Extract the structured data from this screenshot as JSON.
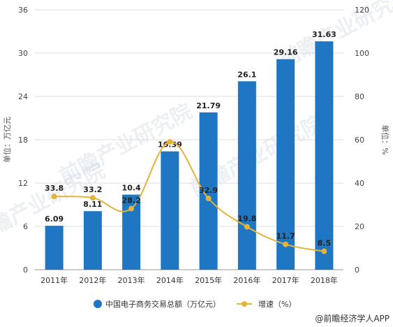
{
  "chart_data": {
    "type": "bar",
    "categories": [
      "2011年",
      "2012年",
      "2013年",
      "2014年",
      "2015年",
      "2016年",
      "2017年",
      "2018年"
    ],
    "series": [
      {
        "name": "中国电子商务交易总额（万亿元）",
        "type": "bar",
        "axis": "left",
        "values": [
          6.09,
          8.11,
          10.4,
          16.39,
          21.79,
          26.1,
          29.16,
          31.63
        ],
        "labels": [
          "6.09",
          "8.11",
          "10.4",
          "16.39",
          "21.79",
          "26.1",
          "29.16",
          "31.63"
        ],
        "color": "#1f77c4"
      },
      {
        "name": "增速（%）",
        "type": "line",
        "axis": "right",
        "values": [
          33.8,
          33.2,
          28.2,
          59,
          32.9,
          19.8,
          11.7,
          8.5
        ],
        "labels": [
          "33.8",
          "33.2",
          "28.2",
          "",
          "32.9",
          "19.8",
          "11.7",
          "8.5"
        ],
        "color": "#e4b33a"
      }
    ],
    "ylabel_left": "单位：万亿元",
    "ylabel_right": "单位：%",
    "ylim_left": [
      0,
      36
    ],
    "yticks_left": [
      "0",
      "6",
      "12",
      "18",
      "24",
      "30",
      "36"
    ],
    "ylim_right": [
      0,
      120
    ],
    "yticks_right": [
      "0",
      "20",
      "40",
      "60",
      "80",
      "100",
      "120"
    ],
    "grid": true,
    "legend_position": "bottom"
  },
  "watermark": "前瞻产业研究院",
  "source": "@前瞻经济学人APP"
}
